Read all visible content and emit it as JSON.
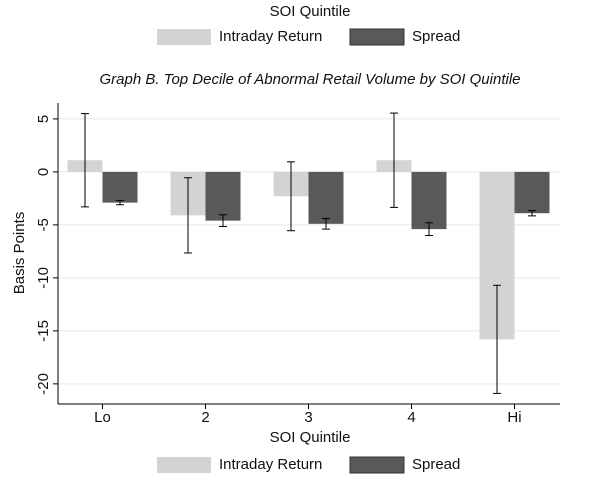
{
  "chart_data": {
    "type": "bar",
    "title": "Graph B. Top Decile of Abnormal Retail Volume by SOI Quintile",
    "legend_title": "SOI Quintile",
    "legend": [
      "top",
      "bottom"
    ],
    "x_label": "SOI Quintile",
    "y_label": "Basis Points",
    "categories": [
      "Lo",
      "2",
      "3",
      "4",
      "Hi"
    ],
    "series": [
      {
        "name": "Intraday Return",
        "color": "#d3d3d3",
        "values": [
          1.1,
          -4.1,
          -2.3,
          1.1,
          -15.8
        ],
        "errors": [
          4.4,
          3.55,
          3.25,
          4.45,
          5.1
        ]
      },
      {
        "name": "Spread",
        "color": "#595959",
        "values": [
          -2.9,
          -4.6,
          -4.9,
          -5.4,
          -3.9
        ],
        "errors": [
          0.2,
          0.55,
          0.5,
          0.6,
          0.25
        ]
      }
    ],
    "ylim": [
      -21.9,
      6.5
    ],
    "yticks": [
      5,
      0,
      -5,
      -10,
      -15,
      -20
    ],
    "grid": true
  }
}
